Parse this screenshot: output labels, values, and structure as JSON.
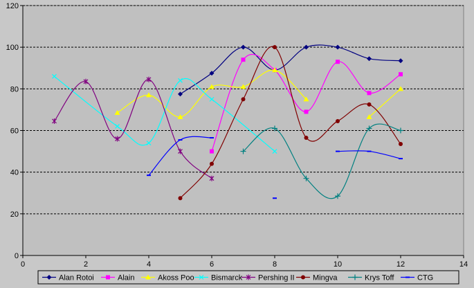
{
  "chart_data": {
    "type": "line",
    "title": "",
    "xlabel": "",
    "ylabel": "",
    "xlim": [
      0,
      14
    ],
    "ylim": [
      0,
      120
    ],
    "x_ticks": [
      0,
      2,
      4,
      6,
      8,
      10,
      12,
      14
    ],
    "y_ticks": [
      0,
      20,
      40,
      60,
      80,
      100,
      120
    ],
    "grid": "horizontal dashed",
    "legend_position": "bottom",
    "plot_background": "#c0c0c0",
    "series": [
      {
        "name": "Alan Rotoi",
        "color": "#000080",
        "marker": "diamond",
        "x": [
          5,
          6,
          7,
          8,
          9,
          10,
          11,
          12
        ],
        "y": [
          77.5,
          87.5,
          100,
          89,
          100,
          100,
          94.5,
          93.5
        ]
      },
      {
        "name": "Alain",
        "color": "#ff00ff",
        "marker": "square",
        "x": [
          6,
          7,
          8,
          9,
          10,
          11,
          12
        ],
        "y": [
          50,
          94,
          89,
          69,
          93,
          78,
          87
        ]
      },
      {
        "name": "Akoss Poo",
        "color": "#ffff00",
        "marker": "triangle",
        "x": [
          3,
          4,
          5,
          6,
          7,
          8,
          9
        ],
        "y": [
          68.5,
          77,
          66.5,
          81,
          81,
          89,
          75
        ],
        "x2": [
          11,
          12
        ],
        "y2": [
          66.5,
          80
        ]
      },
      {
        "name": "Bismarck",
        "color": "#00ffff",
        "marker": "x",
        "x": [
          1,
          3,
          4,
          5,
          6,
          8
        ],
        "y": [
          86,
          62,
          54,
          84,
          75,
          50
        ]
      },
      {
        "name": "Pershing II",
        "color": "#800080",
        "marker": "star",
        "x": [
          1,
          2,
          3,
          4,
          5,
          6
        ],
        "y": [
          64.5,
          83.5,
          56,
          84.5,
          50,
          37
        ]
      },
      {
        "name": "Mingva",
        "color": "#800000",
        "marker": "circle",
        "x": [
          5,
          6,
          7,
          8,
          9,
          10,
          11,
          12
        ],
        "y": [
          27.5,
          44,
          75,
          100,
          56.5,
          64.5,
          72.5,
          53.5
        ]
      },
      {
        "name": "Krys Toff",
        "color": "#008080",
        "marker": "plus",
        "x": [
          7,
          8,
          9,
          10,
          11,
          12
        ],
        "y": [
          50,
          61,
          37,
          28.5,
          61,
          60
        ]
      },
      {
        "name": "CTG",
        "color": "#0000ff",
        "marker": "dash",
        "segments": [
          {
            "x": [
              4,
              5,
              6
            ],
            "y": [
              38.5,
              55.5,
              56.5
            ]
          },
          {
            "x": [
              8
            ],
            "y": [
              27.5
            ]
          },
          {
            "x": [
              10,
              11,
              12
            ],
            "y": [
              50,
              50,
              46.5
            ]
          }
        ]
      }
    ]
  }
}
